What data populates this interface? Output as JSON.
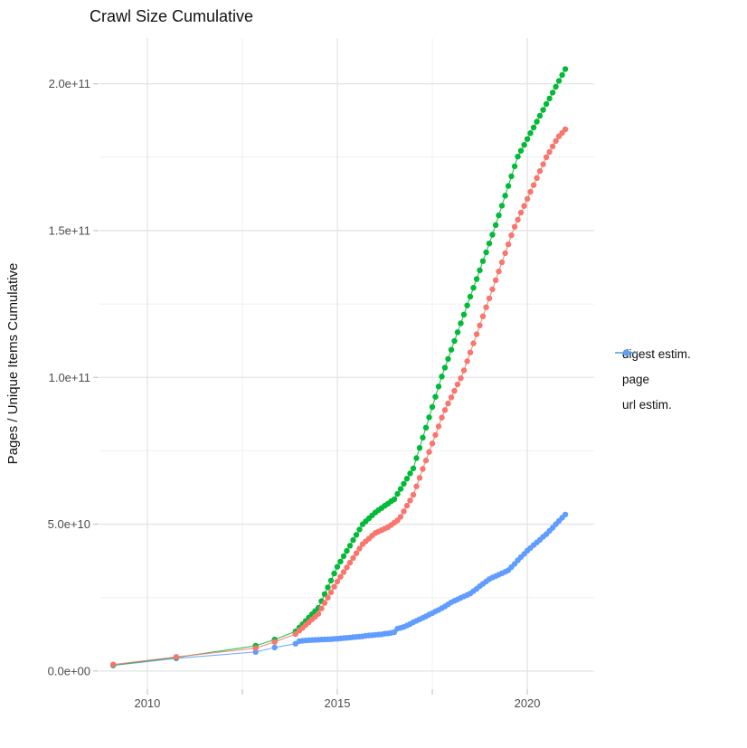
{
  "page": {
    "title": "Crawl Size Cumulative"
  },
  "chart_data": {
    "type": "scatter",
    "title": "Crawl Size Cumulative",
    "xlabel": "",
    "ylabel": "Pages / Unique Items Cumulative",
    "legend_position": "right",
    "grid": true,
    "value_unit_multiplier": 1000000000.0,
    "xlim": [
      2008.74,
      2021.76
    ],
    "ylim": [
      -6.2,
      215.6
    ],
    "x_ticks": [
      {
        "value": 2010,
        "label": "2010"
      },
      {
        "value": 2015,
        "label": "2015"
      },
      {
        "value": 2020,
        "label": "2020"
      }
    ],
    "x_minor_ticks": [
      2012.5,
      2017.5
    ],
    "y_ticks": [
      {
        "value": 0,
        "label": "0.0e+00"
      },
      {
        "value": 50,
        "label": "5.0e+10"
      },
      {
        "value": 100,
        "label": "1.0e+11"
      },
      {
        "value": 150,
        "label": "1.5e+11"
      },
      {
        "value": 200,
        "label": "2.0e+11"
      }
    ],
    "y_minor_ticks": [
      25,
      75,
      125,
      175
    ],
    "series": [
      {
        "name": "digest estim.",
        "color": "#F8766D",
        "points": [
          [
            2009.1,
            2.2
          ],
          [
            2010.76,
            4.8
          ],
          [
            2012.85,
            7.8
          ],
          [
            2013.35,
            9.9
          ],
          [
            2013.9,
            12.6
          ],
          [
            2014.0,
            13.8
          ],
          [
            2014.083,
            14.7
          ],
          [
            2014.167,
            15.7
          ],
          [
            2014.25,
            16.6
          ],
          [
            2014.333,
            17.6
          ],
          [
            2014.417,
            18.5
          ],
          [
            2014.5,
            19.5
          ],
          [
            2014.583,
            21.3
          ],
          [
            2014.667,
            23.2
          ],
          [
            2014.75,
            25.0
          ],
          [
            2014.833,
            26.8
          ],
          [
            2014.917,
            28.7
          ],
          [
            2015.0,
            30.5
          ],
          [
            2015.083,
            32.1
          ],
          [
            2015.167,
            33.7
          ],
          [
            2015.25,
            35.3
          ],
          [
            2015.333,
            36.9
          ],
          [
            2015.417,
            38.5
          ],
          [
            2015.5,
            40.1
          ],
          [
            2015.583,
            41.7
          ],
          [
            2015.667,
            43.2
          ],
          [
            2015.75,
            44.2
          ],
          [
            2015.833,
            45.1
          ],
          [
            2015.917,
            46.1
          ],
          [
            2016.0,
            47.0
          ],
          [
            2016.083,
            47.5
          ],
          [
            2016.167,
            48.0
          ],
          [
            2016.25,
            48.5
          ],
          [
            2016.333,
            49.0
          ],
          [
            2016.417,
            49.7
          ],
          [
            2016.5,
            50.5
          ],
          [
            2016.583,
            51.3
          ],
          [
            2016.667,
            52.5
          ],
          [
            2016.75,
            54.4
          ],
          [
            2016.833,
            56.3
          ],
          [
            2016.917,
            58.1
          ],
          [
            2017.0,
            60.0
          ],
          [
            2017.083,
            62.9
          ],
          [
            2017.167,
            65.8
          ],
          [
            2017.25,
            68.8
          ],
          [
            2017.333,
            71.7
          ],
          [
            2017.417,
            74.6
          ],
          [
            2017.5,
            77.5
          ],
          [
            2017.583,
            80.4
          ],
          [
            2017.667,
            83.3
          ],
          [
            2017.75,
            86.3
          ],
          [
            2017.833,
            88.9
          ],
          [
            2017.917,
            91.1
          ],
          [
            2018.0,
            93.2
          ],
          [
            2018.083,
            95.4
          ],
          [
            2018.167,
            97.6
          ],
          [
            2018.25,
            99.7
          ],
          [
            2018.333,
            102.4
          ],
          [
            2018.417,
            105.5
          ],
          [
            2018.5,
            108.5
          ],
          [
            2018.583,
            111.6
          ],
          [
            2018.667,
            114.7
          ],
          [
            2018.75,
            117.7
          ],
          [
            2018.833,
            120.8
          ],
          [
            2018.917,
            123.9
          ],
          [
            2019.0,
            126.9
          ],
          [
            2019.083,
            130.0
          ],
          [
            2019.167,
            133.1
          ],
          [
            2019.25,
            136.1
          ],
          [
            2019.333,
            139.2
          ],
          [
            2019.417,
            142.3
          ],
          [
            2019.5,
            145.3
          ],
          [
            2019.583,
            148.4
          ],
          [
            2019.667,
            151.3
          ],
          [
            2019.75,
            153.7
          ],
          [
            2019.833,
            156.1
          ],
          [
            2019.917,
            158.4
          ],
          [
            2020.0,
            160.8
          ],
          [
            2020.083,
            163.2
          ],
          [
            2020.167,
            165.5
          ],
          [
            2020.25,
            167.9
          ],
          [
            2020.333,
            170.3
          ],
          [
            2020.417,
            172.6
          ],
          [
            2020.5,
            175.0
          ],
          [
            2020.583,
            176.8
          ],
          [
            2020.667,
            178.7
          ],
          [
            2020.75,
            180.5
          ],
          [
            2020.833,
            182.1
          ],
          [
            2020.917,
            183.3
          ],
          [
            2021.0,
            184.5
          ]
        ]
      },
      {
        "name": "page",
        "color": "#00BA38",
        "points": [
          [
            2009.1,
            2.0
          ],
          [
            2010.76,
            4.6
          ],
          [
            2012.85,
            8.6
          ],
          [
            2013.35,
            10.7
          ],
          [
            2013.9,
            13.5
          ],
          [
            2014.0,
            14.8
          ],
          [
            2014.083,
            15.9
          ],
          [
            2014.167,
            17.0
          ],
          [
            2014.25,
            18.2
          ],
          [
            2014.333,
            19.3
          ],
          [
            2014.417,
            20.4
          ],
          [
            2014.5,
            21.5
          ],
          [
            2014.583,
            23.8
          ],
          [
            2014.667,
            26.2
          ],
          [
            2014.75,
            28.5
          ],
          [
            2014.833,
            30.8
          ],
          [
            2014.917,
            33.2
          ],
          [
            2015.0,
            35.5
          ],
          [
            2015.083,
            37.3
          ],
          [
            2015.167,
            39.1
          ],
          [
            2015.25,
            40.9
          ],
          [
            2015.333,
            42.7
          ],
          [
            2015.417,
            44.6
          ],
          [
            2015.5,
            46.4
          ],
          [
            2015.583,
            48.2
          ],
          [
            2015.667,
            50.0
          ],
          [
            2015.75,
            51.0
          ],
          [
            2015.833,
            52.0
          ],
          [
            2015.917,
            53.0
          ],
          [
            2016.0,
            54.0
          ],
          [
            2016.083,
            54.8
          ],
          [
            2016.167,
            55.5
          ],
          [
            2016.25,
            56.3
          ],
          [
            2016.333,
            57.0
          ],
          [
            2016.417,
            57.8
          ],
          [
            2016.5,
            58.5
          ],
          [
            2016.583,
            60.3
          ],
          [
            2016.667,
            62.0
          ],
          [
            2016.75,
            63.8
          ],
          [
            2016.833,
            65.5
          ],
          [
            2016.917,
            67.3
          ],
          [
            2017.0,
            69.0
          ],
          [
            2017.083,
            72.5
          ],
          [
            2017.167,
            76.0
          ],
          [
            2017.25,
            79.5
          ],
          [
            2017.333,
            82.9
          ],
          [
            2017.417,
            86.4
          ],
          [
            2017.5,
            89.9
          ],
          [
            2017.583,
            93.4
          ],
          [
            2017.667,
            96.9
          ],
          [
            2017.75,
            100.3
          ],
          [
            2017.833,
            103.3
          ],
          [
            2017.917,
            106.3
          ],
          [
            2018.0,
            109.4
          ],
          [
            2018.083,
            112.4
          ],
          [
            2018.167,
            115.4
          ],
          [
            2018.25,
            118.4
          ],
          [
            2018.333,
            121.4
          ],
          [
            2018.417,
            124.5
          ],
          [
            2018.5,
            127.5
          ],
          [
            2018.583,
            130.5
          ],
          [
            2018.667,
            133.5
          ],
          [
            2018.75,
            136.5
          ],
          [
            2018.833,
            139.6
          ],
          [
            2018.917,
            142.6
          ],
          [
            2019.0,
            145.6
          ],
          [
            2019.083,
            148.6
          ],
          [
            2019.167,
            151.9
          ],
          [
            2019.25,
            155.2
          ],
          [
            2019.333,
            158.5
          ],
          [
            2019.417,
            161.9
          ],
          [
            2019.5,
            165.2
          ],
          [
            2019.583,
            168.5
          ],
          [
            2019.667,
            171.9
          ],
          [
            2019.75,
            175.2
          ],
          [
            2019.833,
            177.2
          ],
          [
            2019.917,
            179.2
          ],
          [
            2020.0,
            181.2
          ],
          [
            2020.083,
            183.2
          ],
          [
            2020.167,
            185.1
          ],
          [
            2020.25,
            187.1
          ],
          [
            2020.333,
            189.1
          ],
          [
            2020.417,
            191.1
          ],
          [
            2020.5,
            193.1
          ],
          [
            2020.583,
            195.0
          ],
          [
            2020.667,
            197.0
          ],
          [
            2020.75,
            199.0
          ],
          [
            2020.833,
            201.0
          ],
          [
            2020.917,
            203.0
          ],
          [
            2021.0,
            205.0
          ]
        ]
      },
      {
        "name": "url estim.",
        "color": "#619CFF",
        "points": [
          [
            2009.1,
            1.9
          ],
          [
            2010.76,
            4.3
          ],
          [
            2012.85,
            6.5
          ],
          [
            2013.35,
            8.0
          ],
          [
            2013.9,
            9.3
          ],
          [
            2014.0,
            10.2
          ],
          [
            2014.083,
            10.3
          ],
          [
            2014.167,
            10.4
          ],
          [
            2014.25,
            10.5
          ],
          [
            2014.333,
            10.55
          ],
          [
            2014.417,
            10.6
          ],
          [
            2014.5,
            10.65
          ],
          [
            2014.583,
            10.7
          ],
          [
            2014.667,
            10.75
          ],
          [
            2014.75,
            10.8
          ],
          [
            2014.833,
            10.85
          ],
          [
            2014.917,
            10.95
          ],
          [
            2015.0,
            11.0
          ],
          [
            2015.083,
            11.1
          ],
          [
            2015.167,
            11.2
          ],
          [
            2015.25,
            11.3
          ],
          [
            2015.333,
            11.4
          ],
          [
            2015.417,
            11.5
          ],
          [
            2015.5,
            11.6
          ],
          [
            2015.583,
            11.7
          ],
          [
            2015.667,
            11.8
          ],
          [
            2015.75,
            12.0
          ],
          [
            2015.833,
            12.1
          ],
          [
            2015.917,
            12.2
          ],
          [
            2016.0,
            12.3
          ],
          [
            2016.083,
            12.4
          ],
          [
            2016.167,
            12.5
          ],
          [
            2016.25,
            12.7
          ],
          [
            2016.333,
            12.8
          ],
          [
            2016.417,
            13.0
          ],
          [
            2016.5,
            13.2
          ],
          [
            2016.583,
            14.4
          ],
          [
            2016.667,
            14.7
          ],
          [
            2016.75,
            15.0
          ],
          [
            2016.833,
            15.5
          ],
          [
            2016.917,
            16.0
          ],
          [
            2017.0,
            16.6
          ],
          [
            2017.083,
            17.1
          ],
          [
            2017.167,
            17.6
          ],
          [
            2017.25,
            18.1
          ],
          [
            2017.333,
            18.6
          ],
          [
            2017.417,
            19.2
          ],
          [
            2017.5,
            19.7
          ],
          [
            2017.583,
            20.3
          ],
          [
            2017.667,
            20.8
          ],
          [
            2017.75,
            21.4
          ],
          [
            2017.833,
            22.0
          ],
          [
            2017.917,
            22.7
          ],
          [
            2018.0,
            23.4
          ],
          [
            2018.083,
            23.9
          ],
          [
            2018.167,
            24.4
          ],
          [
            2018.25,
            24.9
          ],
          [
            2018.333,
            25.4
          ],
          [
            2018.417,
            25.9
          ],
          [
            2018.5,
            26.4
          ],
          [
            2018.583,
            27.2
          ],
          [
            2018.667,
            28.0
          ],
          [
            2018.75,
            28.9
          ],
          [
            2018.833,
            29.7
          ],
          [
            2018.917,
            30.5
          ],
          [
            2019.0,
            31.3
          ],
          [
            2019.083,
            31.8
          ],
          [
            2019.167,
            32.3
          ],
          [
            2019.25,
            32.8
          ],
          [
            2019.333,
            33.3
          ],
          [
            2019.417,
            33.8
          ],
          [
            2019.5,
            34.3
          ],
          [
            2019.583,
            35.4
          ],
          [
            2019.667,
            36.5
          ],
          [
            2019.75,
            37.7
          ],
          [
            2019.833,
            38.8
          ],
          [
            2019.917,
            39.9
          ],
          [
            2020.0,
            41.0
          ],
          [
            2020.083,
            41.9
          ],
          [
            2020.167,
            42.9
          ],
          [
            2020.25,
            43.8
          ],
          [
            2020.333,
            44.7
          ],
          [
            2020.417,
            45.7
          ],
          [
            2020.5,
            46.6
          ],
          [
            2020.583,
            47.7
          ],
          [
            2020.667,
            48.8
          ],
          [
            2020.75,
            50.0
          ],
          [
            2020.833,
            51.1
          ],
          [
            2020.917,
            52.2
          ],
          [
            2021.0,
            53.3
          ]
        ]
      }
    ]
  }
}
